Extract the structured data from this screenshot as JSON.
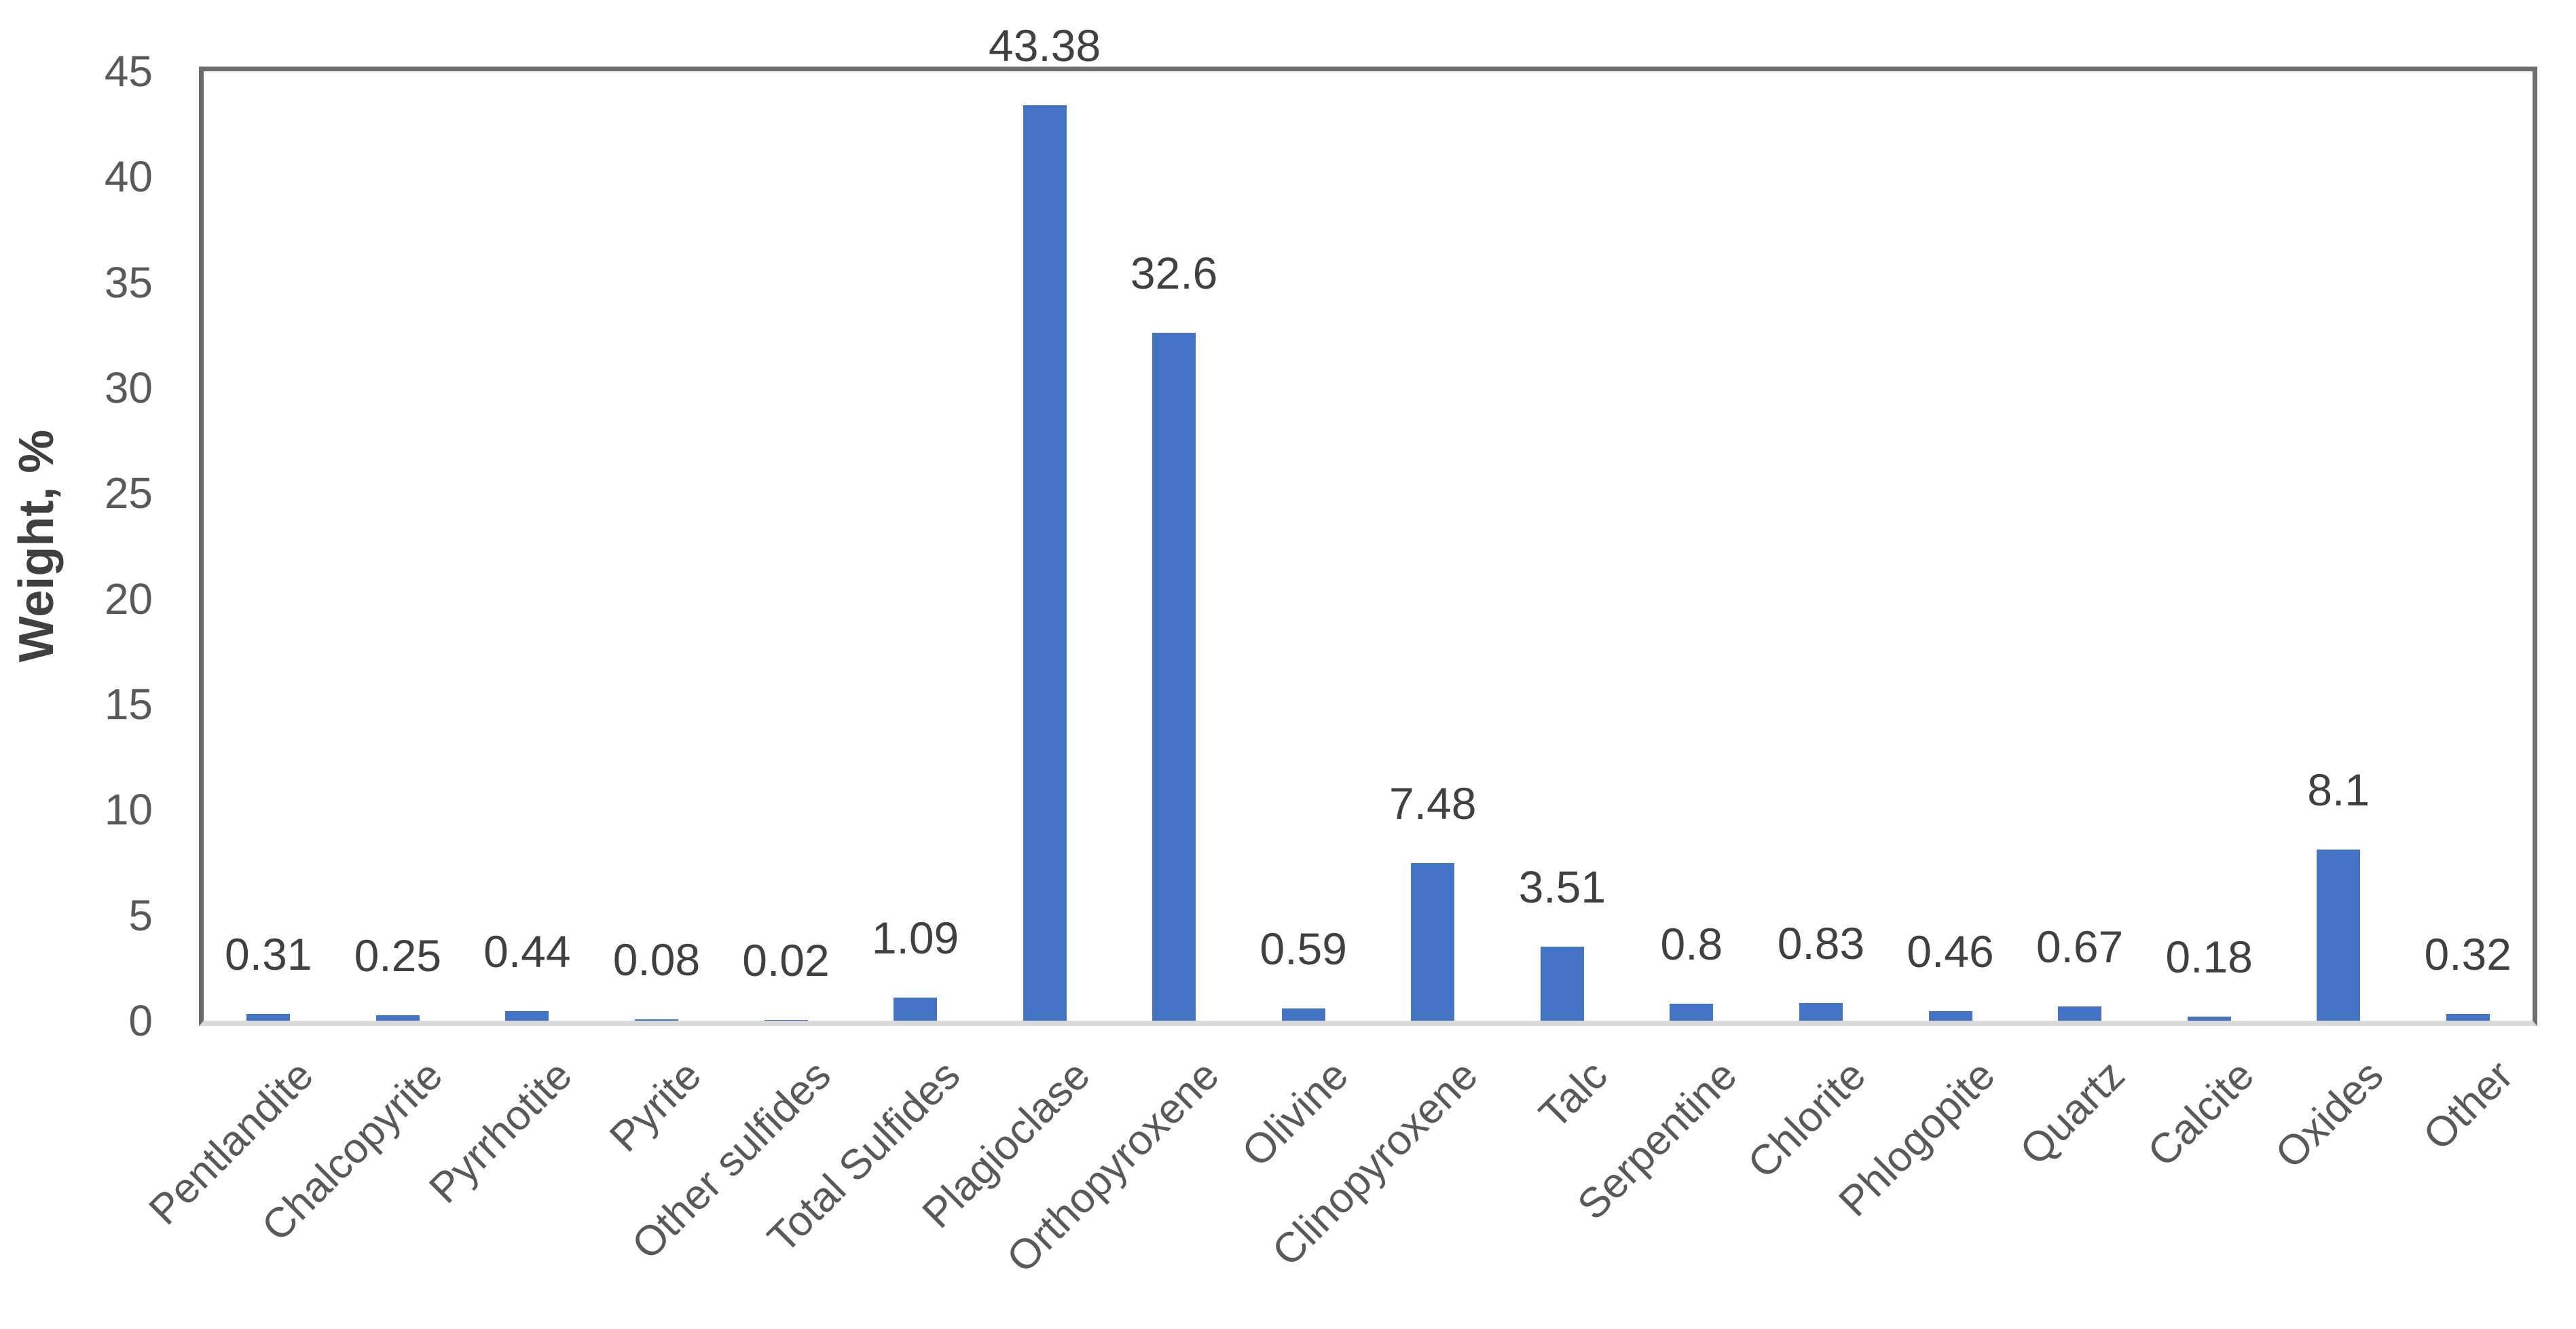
{
  "chart_data": {
    "type": "bar",
    "ylabel": "Weight, %",
    "ylim": [
      0,
      45
    ],
    "ytick_step": 5,
    "yticks": [
      0,
      5,
      10,
      15,
      20,
      25,
      30,
      35,
      40,
      45
    ],
    "grid": false,
    "legend": "none",
    "bar_color": "#4472C4",
    "categories": [
      "Pentlandite",
      "Chalcopyrite",
      "Pyrrhotite",
      "Pyrite",
      "Other sulfides",
      "Total Sulfides",
      "Plagioclase",
      "Orthopyroxene",
      "Olivine",
      "Clinopyroxene",
      "Talc",
      "Serpentine",
      "Chlorite",
      "Phlogopite",
      "Quartz",
      "Calcite",
      "Oxides",
      "Other"
    ],
    "values": [
      0.31,
      0.25,
      0.44,
      0.08,
      0.02,
      1.09,
      43.38,
      32.6,
      0.59,
      7.48,
      3.51,
      0.8,
      0.83,
      0.46,
      0.67,
      0.18,
      8.1,
      0.32
    ],
    "value_labels": [
      "0.31",
      "0.25",
      "0.44",
      "0.08",
      "0.02",
      "1.09",
      "43.38",
      "32.6",
      "0.59",
      "7.48",
      "3.51",
      "0.8",
      "0.83",
      "0.46",
      "0.67",
      "0.18",
      "8.1",
      "0.32"
    ]
  },
  "style": {
    "background": "#FFFFFF",
    "plot_border_color": "#726D6D",
    "value_axis_line_color": "#6E6969",
    "category_axis_line_color": "#D9D9D9",
    "tick_label_color": "#595959",
    "data_label_color": "#404040",
    "axis_title_color": "#404040"
  }
}
